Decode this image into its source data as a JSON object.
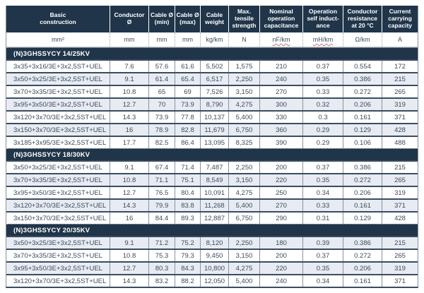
{
  "table": {
    "columns": [
      {
        "label": "Basic\nconstruction",
        "unit": "mm²",
        "squiggle": false
      },
      {
        "label": "Conductor\nØ",
        "unit": "mm",
        "squiggle": false
      },
      {
        "label": "Cable Ø\n(min)",
        "unit": "mm",
        "squiggle": false
      },
      {
        "label": "Cable Ø\n(max)",
        "unit": "mm",
        "squiggle": false
      },
      {
        "label": "Cable\nweight",
        "unit": "kg/km",
        "squiggle": false
      },
      {
        "label": "Max.\ntensile\nstrength",
        "unit": "N",
        "squiggle": false
      },
      {
        "label": "Nominal\noperation\ncapacitance",
        "unit": "nF/km",
        "squiggle": true
      },
      {
        "label": "Operation\nself induct-\nance",
        "unit": "mH/km",
        "squiggle": true
      },
      {
        "label": "Conductor\nresistance\nat 20 °C",
        "unit": "Ω/km",
        "squiggle": false
      },
      {
        "label": "Current\ncarrying\ncapacity",
        "unit": "A",
        "squiggle": false
      }
    ],
    "sections": [
      {
        "title": "(N)3GHSSYCY 14/25KV",
        "first_row_shaded": false,
        "rows": [
          [
            "3x35+3x16/3E+3x2,5ST+UEL",
            "7.6",
            "57.6",
            "61.6",
            "5,502",
            "1,575",
            "210",
            "0.37",
            "0.554",
            "172"
          ],
          [
            "3x50+3x25/3E+3x2,5ST+UEL",
            "9.1",
            "61.4",
            "65.4",
            "6,517",
            "2,250",
            "240",
            "0.35",
            "0.386",
            "215"
          ],
          [
            "3x70+3x35/3E+3x2,5ST+UEL",
            "10.8",
            "65",
            "69",
            "7,526",
            "3,150",
            "270",
            "0.33",
            "0.272",
            "265"
          ],
          [
            "3x95+3x50/3E+3x2,5ST+UEL",
            "12.7",
            "70",
            "73.9",
            "8,790",
            "4,275",
            "300",
            "0.32",
            "0.206",
            "319"
          ],
          [
            "3x120+3x70/3E+3x2,5ST+UEL",
            "14.3",
            "73.9",
            "77.8",
            "10,137",
            "5,400",
            "330",
            "0.3",
            "0.161",
            "371"
          ],
          [
            "3x150+3x70/3E+3x2,5ST+UEL",
            "16",
            "78.9",
            "82.8",
            "11,679",
            "6,750",
            "360",
            "0.29",
            "0.129",
            "428"
          ],
          [
            "3x185+3x95/3E+3x2,5ST+UEL",
            "17.7",
            "82.5",
            "86.4",
            "13,095",
            "8,325",
            "390",
            "0.29",
            "0.106",
            "488"
          ]
        ]
      },
      {
        "title": "(N)3GHSSYCY 18/30KV",
        "first_row_shaded": false,
        "rows": [
          [
            "3x50+3x25/3E+3x2,5ST+UEL",
            "9.1",
            "67.4",
            "71.4",
            "7,487",
            "2,250",
            "200",
            "0.37",
            "0.386",
            "215"
          ],
          [
            "3x70+3x35/3E+3x2,5ST+UEL",
            "10.8",
            "71.1",
            "75.1",
            "8,549",
            "3,150",
            "220",
            "0.35",
            "0.272",
            "265"
          ],
          [
            "3x95+3x50/3E+3x2,5ST+UEL",
            "12.7",
            "76.5",
            "80.4",
            "10,091",
            "4,275",
            "250",
            "0.34",
            "0.206",
            "319"
          ],
          [
            "3x120+3x70/3E+3x2,5ST+UEL",
            "14.3",
            "79.9",
            "83.8",
            "11,268",
            "5,400",
            "270",
            "0.33",
            "0.161",
            "371"
          ],
          [
            "3x150+3x70/3E+3x2,5ST+UEL",
            "16",
            "84.4",
            "89.3",
            "12,887",
            "6,750",
            "290",
            "0.31",
            "0.129",
            "428"
          ]
        ]
      },
      {
        "title": "(N)3GHSSYCY 20/35KV",
        "first_row_shaded": true,
        "rows": [
          [
            "3x50+3x25/3E+3x2,5ST+UEL",
            "9.1",
            "71.2",
            "75.2",
            "8,120",
            "2,250",
            "180",
            "0.39",
            "0.386",
            "215"
          ],
          [
            "3x70+3x35/3E+3x2,5ST+UEL",
            "10.8",
            "75.3",
            "79.3",
            "9,450",
            "3,150",
            "200",
            "0.37",
            "0.272",
            "265"
          ],
          [
            "3x95+3x50/3E+3x2,5ST+UEL",
            "12.7",
            "80.3",
            "84.3",
            "10,800",
            "4,275",
            "220",
            "0.35",
            "0.206",
            "319"
          ],
          [
            "3x120+3x70/3E+3x2,5ST+UEL",
            "14.3",
            "83.2",
            "88.2",
            "12,050",
            "5,400",
            "240",
            "0.34",
            "0.161",
            "371"
          ]
        ]
      }
    ],
    "colors": {
      "header_background": "#203549",
      "header_text": "#ffffff",
      "shaded_row": "#e8ebf2",
      "data_text": "#3c4b5d",
      "grid_line": "#8893a0",
      "row_rule": "#3a4c60"
    }
  }
}
